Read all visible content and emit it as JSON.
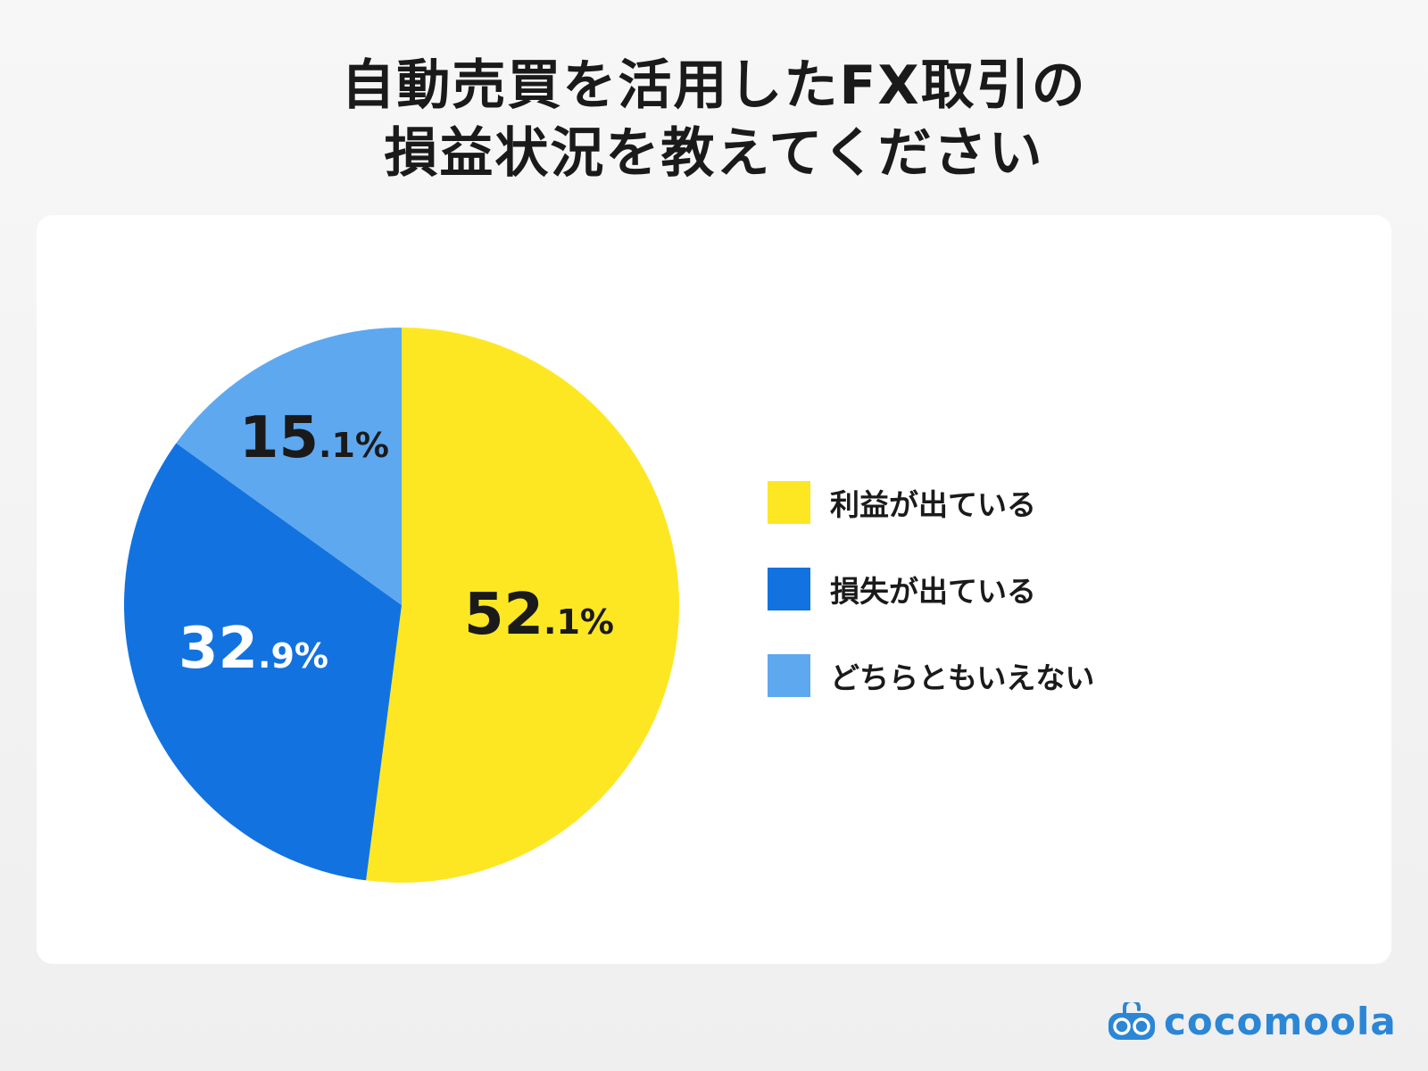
{
  "chart_data": {
    "type": "pie",
    "title": [
      "自動売買を活用したFX取引の",
      "損益状況を教えてください"
    ],
    "categories": [
      "利益が出ている",
      "損失が出ている",
      "どちらともいえない"
    ],
    "values": [
      52.1,
      32.9,
      15.1
    ],
    "labels": [
      {
        "int": "52",
        "dec": ".1%"
      },
      {
        "int": "32",
        "dec": ".9%"
      },
      {
        "int": "15",
        "dec": ".1%"
      }
    ],
    "colors": [
      "#fde723",
      "#1273e0",
      "#5ea8f0"
    ],
    "label_colors": [
      "#1a1a1a",
      "#ffffff",
      "#1a1a1a"
    ],
    "start_angle_deg": 0,
    "direction": "clockwise",
    "legend_position": "right"
  },
  "brand": {
    "name": "cocomoola",
    "color": "#2b86d6"
  }
}
